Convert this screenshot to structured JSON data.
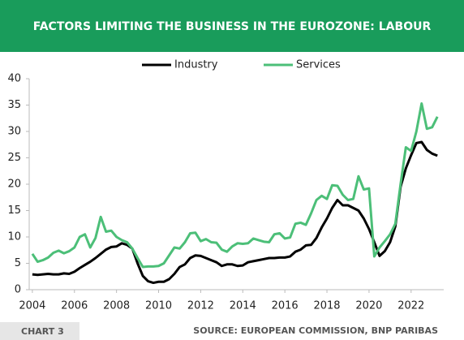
{
  "chart_data": {
    "type": "line",
    "title": "FACTORS LIMITING THE BUSINESS IN THE EUROZONE: LABOUR",
    "chart_label": "CHART 3",
    "source": "SOURCE: EUROPEAN COMMISSION, BNP PARIBAS",
    "x": [
      2004,
      2004.25,
      2004.5,
      2004.75,
      2005,
      2005.25,
      2005.5,
      2005.75,
      2006,
      2006.25,
      2006.5,
      2006.75,
      2007,
      2007.25,
      2007.5,
      2007.75,
      2008,
      2008.25,
      2008.5,
      2008.75,
      2009,
      2009.25,
      2009.5,
      2009.75,
      2010,
      2010.25,
      2010.5,
      2010.75,
      2011,
      2011.25,
      2011.5,
      2011.75,
      2012,
      2012.25,
      2012.5,
      2012.75,
      2013,
      2013.25,
      2013.5,
      2013.75,
      2014,
      2014.25,
      2014.5,
      2014.75,
      2015,
      2015.25,
      2015.5,
      2015.75,
      2016,
      2016.25,
      2016.5,
      2016.75,
      2017,
      2017.25,
      2017.5,
      2017.75,
      2018,
      2018.25,
      2018.5,
      2018.75,
      2019,
      2019.25,
      2019.5,
      2019.75,
      2020,
      2020.25,
      2020.5,
      2020.75,
      2021,
      2021.25,
      2021.5,
      2021.75,
      2022,
      2022.25,
      2022.5,
      2022.75,
      2023,
      2023.25
    ],
    "series": [
      {
        "name": "Industry",
        "color": "#000000",
        "values": [
          2.9,
          2.8,
          2.9,
          3.0,
          2.9,
          2.9,
          3.1,
          3.0,
          3.4,
          4.1,
          4.7,
          5.3,
          6.0,
          6.8,
          7.6,
          8.1,
          8.2,
          8.8,
          8.5,
          7.8,
          5.0,
          2.6,
          1.6,
          1.3,
          1.5,
          1.5,
          2.0,
          3.0,
          4.3,
          4.8,
          6.0,
          6.5,
          6.4,
          6.0,
          5.6,
          5.2,
          4.5,
          4.8,
          4.8,
          4.5,
          4.6,
          5.2,
          5.4,
          5.6,
          5.8,
          6.0,
          6.0,
          6.1,
          6.1,
          6.3,
          7.2,
          7.6,
          8.4,
          8.5,
          9.8,
          11.8,
          13.5,
          15.5,
          17.0,
          16.0,
          16.0,
          15.5,
          15.0,
          13.5,
          11.5,
          9.0,
          6.4,
          7.3,
          9.0,
          12.0,
          19.5,
          23.0,
          25.5,
          27.8,
          28.0,
          26.5,
          25.8,
          25.4
        ]
      },
      {
        "name": "Services",
        "color": "#4cbf78",
        "values": [
          6.8,
          5.3,
          5.6,
          6.1,
          7.0,
          7.4,
          6.9,
          7.3,
          8.0,
          10.0,
          10.5,
          8.0,
          9.8,
          13.8,
          11.0,
          11.2,
          10.0,
          9.4,
          9.0,
          7.8,
          6.0,
          4.3,
          4.4,
          4.4,
          4.5,
          5.0,
          6.5,
          8.0,
          7.8,
          9.0,
          10.7,
          10.8,
          9.2,
          9.6,
          9.0,
          8.9,
          7.6,
          7.2,
          8.2,
          8.8,
          8.7,
          8.8,
          9.7,
          9.4,
          9.1,
          9.0,
          10.5,
          10.7,
          9.7,
          9.9,
          12.5,
          12.7,
          12.3,
          14.5,
          17.0,
          17.8,
          17.2,
          19.8,
          19.7,
          18.0,
          17.0,
          17.2,
          21.5,
          19.0,
          19.2,
          6.3,
          8.0,
          9.2,
          10.5,
          12.5,
          20.0,
          27.0,
          26.3,
          30.0,
          35.3,
          30.5,
          30.8,
          32.8
        ]
      }
    ],
    "xlim": [
      2003.85,
      2023.55
    ],
    "xticks": [
      2004,
      2006,
      2008,
      2010,
      2012,
      2014,
      2016,
      2018,
      2020,
      2022
    ],
    "ylim": [
      0,
      40
    ],
    "yticks": [
      0,
      5,
      10,
      15,
      20,
      25,
      30,
      35,
      40
    ],
    "grid": false,
    "legend": "top"
  }
}
